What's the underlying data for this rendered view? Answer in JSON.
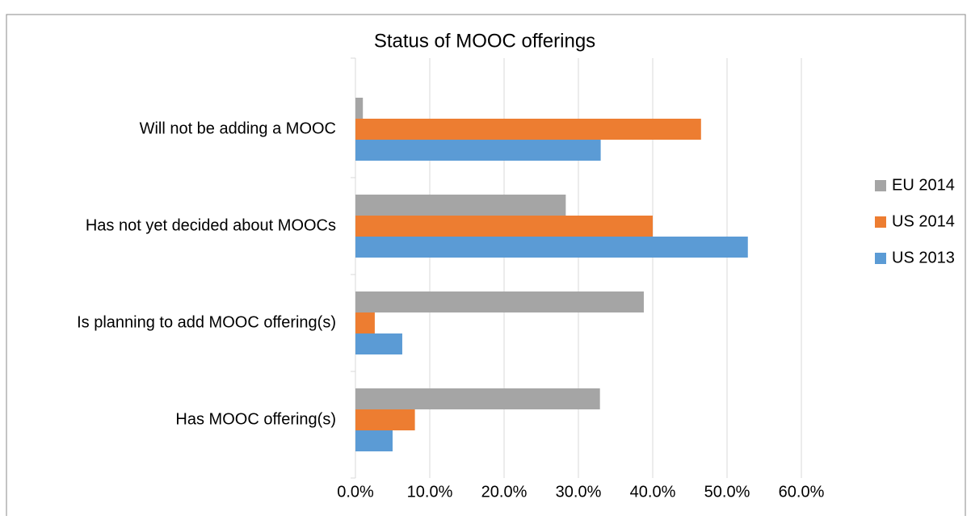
{
  "chart_data": {
    "type": "hbar",
    "title": "Status of MOOC offerings",
    "categories": [
      "Will not be adding a MOOC",
      "Has not yet decided about MOOCs",
      "Is planning to add MOOC offering(s)",
      "Has MOOC offering(s)"
    ],
    "series": [
      {
        "name": "EU 2014",
        "color": "#a5a5a5",
        "values": [
          1.0,
          28.3,
          38.8,
          32.9
        ]
      },
      {
        "name": "US 2014",
        "color": "#ed7d31",
        "values": [
          46.5,
          40.0,
          2.6,
          8.0
        ]
      },
      {
        "name": "US 2013",
        "color": "#5b9bd5",
        "values": [
          33.0,
          52.8,
          6.3,
          5.0
        ]
      }
    ],
    "xlim": [
      0,
      60
    ],
    "xticks": [
      {
        "value": 0,
        "label": "0.0%"
      },
      {
        "value": 10,
        "label": "10.0%"
      },
      {
        "value": 20,
        "label": "20.0%"
      },
      {
        "value": 30,
        "label": "30.0%"
      },
      {
        "value": 40,
        "label": "40.0%"
      },
      {
        "value": 50,
        "label": "50.0%"
      },
      {
        "value": 60,
        "label": "60.0%"
      }
    ],
    "grid": true,
    "legend": "right"
  }
}
